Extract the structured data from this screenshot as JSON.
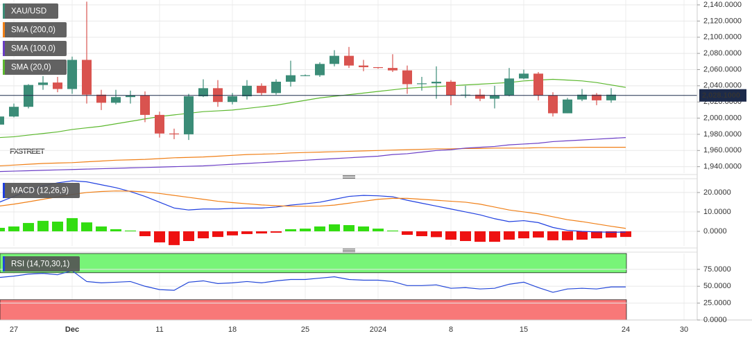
{
  "chart_data": [
    {
      "type": "candlestick",
      "watermark": "FXSTREET",
      "categories": [
        null,
        "27",
        null,
        null,
        null,
        "Dec",
        null,
        null,
        null,
        null,
        null,
        "11",
        null,
        null,
        null,
        null,
        "18",
        null,
        null,
        null,
        null,
        "25",
        null,
        null,
        null,
        null,
        "2024",
        null,
        null,
        null,
        null,
        "8",
        null,
        null,
        null,
        null,
        "15",
        null,
        null,
        null,
        null,
        null,
        null,
        "24",
        null,
        null,
        null,
        "30"
      ],
      "candles": {
        "name": "XAU/USD",
        "up_color": "#3b8c77",
        "down_color": "#d9534f",
        "open": [
          1992,
          2002,
          2014,
          2041,
          2044,
          2036,
          2072,
          2029,
          2019,
          2026,
          2028,
          2004,
          1981,
          1980,
          2027,
          2037,
          2020,
          2027,
          2040,
          2031,
          2045,
          2053,
          2053,
          2067,
          2077,
          2065,
          2063,
          2062,
          2059,
          2042,
          2043,
          2045,
          2028,
          2029,
          2024,
          2028,
          2049,
          2055,
          2028,
          2006,
          2023,
          2029,
          2022,
          null,
          null,
          null,
          null,
          null
        ],
        "high": [
          2004,
          2018,
          2042,
          2052,
          2051,
          2076,
          2144,
          2035,
          2035,
          2034,
          2033,
          2008,
          1987,
          2030,
          2048,
          2047,
          2031,
          2047,
          2043,
          2048,
          2071,
          2054,
          2069,
          2084,
          2088,
          2072,
          2063,
          2079,
          2065,
          2051,
          2064,
          2047,
          2040,
          2036,
          2040,
          2062,
          2060,
          2057,
          2032,
          2025,
          2036,
          2031,
          2037,
          null,
          null,
          null,
          null,
          null
        ],
        "low": [
          1990,
          2001,
          2012,
          2035,
          2032,
          2030,
          2018,
          2010,
          2017,
          2018,
          1995,
          1976,
          1974,
          1973,
          2026,
          2014,
          2017,
          2023,
          2028,
          2029,
          2039,
          2052,
          2051,
          2064,
          2062,
          2058,
          2061,
          2057,
          2030,
          2034,
          2024,
          2016,
          2025,
          2021,
          2012,
          2027,
          2048,
          2022,
          2002,
          2006,
          2021,
          2016,
          2019,
          null,
          null,
          null,
          null,
          null
        ],
        "close": [
          2002,
          2014,
          2041,
          2044,
          2036,
          2072,
          2029,
          2019,
          2026,
          2028,
          2004,
          1981,
          1980,
          2027,
          2037,
          2020,
          2027,
          2040,
          2031,
          2045,
          2053,
          2053,
          2067,
          2077,
          2065,
          2063,
          2062,
          2059,
          2042,
          2043,
          2045,
          2028,
          2029,
          2024,
          2028,
          2049,
          2055,
          2028,
          2006,
          2023,
          2029,
          2022,
          2029,
          null,
          null,
          null,
          null,
          null
        ]
      },
      "series": [
        {
          "name": "SMA (200,0)",
          "color": "#f07f16",
          "values": [
            1941,
            1942,
            1943,
            1944,
            1944.5,
            1945,
            1946,
            1947,
            1948,
            1948.5,
            1949,
            1950,
            1951,
            1951.5,
            1952,
            1953,
            1954,
            1955,
            1955.5,
            1956,
            1957,
            1957.5,
            1958,
            1958.5,
            1959,
            1959.5,
            1960,
            1960.5,
            1961,
            1961.5,
            1962,
            1962,
            1962.5,
            1962.5,
            1963,
            1963,
            1963,
            1963.5,
            1963.5,
            1963.5,
            1964,
            1964,
            1964,
            1964,
            null,
            null,
            null,
            null
          ]
        },
        {
          "name": "SMA (100,0)",
          "color": "#6a3dc6",
          "values": [
            1934,
            1934.5,
            1935,
            1935.5,
            1936,
            1936.5,
            1937,
            1937.5,
            1938,
            1938.5,
            1939,
            1939.5,
            1940,
            1940.5,
            1941,
            1942,
            1943,
            1944,
            1945,
            1946,
            1947,
            1948,
            1949,
            1950,
            1951,
            1952,
            1953,
            1955,
            1956,
            1958,
            1960,
            1961,
            1963,
            1964,
            1965,
            1967,
            1968,
            1969,
            1971,
            1972,
            1973,
            1974,
            1975,
            1976,
            null,
            null,
            null,
            null
          ]
        },
        {
          "name": "SMA (20,0)",
          "color": "#5cb82e",
          "values": [
            1976,
            1977,
            1979,
            1981,
            1983,
            1986,
            1988,
            1990,
            1993,
            1996,
            1999,
            2002,
            2004,
            2006,
            2008,
            2009,
            2010,
            2012,
            2014,
            2016,
            2019,
            2022,
            2025,
            2027,
            2029,
            2031,
            2033,
            2035,
            2037,
            2038,
            2039,
            2040,
            2041,
            2042,
            2043,
            2044,
            2046,
            2047,
            2048,
            2047,
            2046,
            2044,
            2041,
            2038,
            null,
            null,
            null,
            null
          ]
        }
      ],
      "last_price": {
        "value": 2028.1,
        "label": "2,028.1000",
        "color": "#1c2a4a"
      },
      "ylim": [
        1932,
        2146
      ],
      "yticks": [
        {
          "value": 2140,
          "label": "2,140.0000"
        },
        {
          "value": 2120,
          "label": "2,120.0000"
        },
        {
          "value": 2100,
          "label": "2,100.0000"
        },
        {
          "value": 2080,
          "label": "2,080.0000"
        },
        {
          "value": 2060,
          "label": "2,060.0000"
        },
        {
          "value": 2040,
          "label": "2,040.0000"
        },
        {
          "value": 2020,
          "label": "2,020.0000"
        },
        {
          "value": 2000,
          "label": "2,000.0000"
        },
        {
          "value": 1980,
          "label": "1,980.0000"
        },
        {
          "value": 1960,
          "label": "1,960.0000"
        },
        {
          "value": 1940,
          "label": "1,940.0000"
        }
      ],
      "grid": true
    },
    {
      "type": "macd",
      "label": "MACD (12,26,9)",
      "histogram": {
        "up_color": "#33dd11",
        "down_color": "#ee1111",
        "values": [
          1.8,
          2.5,
          4.3,
          5.4,
          5,
          6.8,
          4.6,
          2.5,
          1.1,
          0.4,
          -2.5,
          -5.7,
          -7.1,
          -5,
          -3.6,
          -2.9,
          -2.1,
          -1.4,
          -1.1,
          -0.7,
          1.1,
          1.4,
          2.5,
          3.6,
          3.2,
          2.5,
          1.4,
          0.4,
          -1.8,
          -2.5,
          -3,
          -4.3,
          -5,
          -5.4,
          -5.4,
          -4.3,
          -3.6,
          -3.2,
          -4.6,
          -4.6,
          -4.3,
          -3.6,
          -3.2,
          -2.9,
          null,
          null,
          null,
          null
        ]
      },
      "series": [
        {
          "color": "#1f3fe0",
          "values": [
            15,
            18,
            21,
            23.5,
            25,
            26,
            25.5,
            24,
            22.5,
            20.5,
            18,
            15,
            12,
            11,
            11.5,
            11.5,
            11.8,
            12,
            12,
            12.5,
            13.5,
            14.2,
            15,
            16.5,
            18,
            18.5,
            18.3,
            17.8,
            16,
            14.5,
            13,
            11.5,
            10,
            8.5,
            6.5,
            5,
            5.5,
            4.5,
            2,
            0.5,
            0,
            -0.3,
            -0.5,
            -0.4,
            null,
            null,
            null,
            null
          ]
        },
        {
          "color": "#f07f16",
          "values": [
            13,
            14,
            15.2,
            16.5,
            17.8,
            19,
            20,
            20.5,
            20.8,
            20.7,
            20.3,
            19.5,
            18.5,
            17.5,
            16.5,
            15.5,
            14.8,
            14.2,
            13.6,
            13.2,
            12.9,
            12.9,
            13,
            13.5,
            14.5,
            15.5,
            16.5,
            17,
            17,
            16.5,
            16,
            15.5,
            15,
            14,
            12.5,
            11,
            10,
            9,
            7.5,
            6,
            5,
            3.8,
            2.6,
            1.5,
            null,
            null,
            null,
            null
          ]
        }
      ],
      "ylim": [
        -7.5,
        26.4
      ],
      "yticks": [
        {
          "value": 20,
          "label": "20.0000"
        },
        {
          "value": 10,
          "label": "10.0000"
        },
        {
          "value": 0,
          "label": "0.0000"
        }
      ],
      "grid": true
    },
    {
      "type": "rsi",
      "label": "RSI (14,70,30,1)",
      "bands": [
        {
          "from": 70,
          "to": 98.5,
          "color": "#78f478"
        },
        {
          "from": 0,
          "to": 30,
          "color": "#f87878"
        }
      ],
      "series": [
        {
          "color": "#2246d8",
          "values": [
            63,
            65,
            68,
            69,
            67,
            73,
            57,
            55,
            56,
            57,
            50,
            45,
            44,
            56,
            58,
            54,
            55,
            57,
            55,
            58,
            60,
            60,
            62,
            64,
            60,
            59,
            59,
            57,
            51,
            51,
            52,
            47,
            48,
            46,
            47,
            53,
            56,
            48,
            41,
            46,
            47,
            46,
            49,
            49,
            null,
            null,
            null,
            null
          ]
        }
      ],
      "ylim": [
        0,
        98.5
      ],
      "yticks": [
        {
          "value": 75,
          "label": "75.0000"
        },
        {
          "value": 50,
          "label": "50.0000"
        },
        {
          "value": 25,
          "label": "25.0000"
        },
        {
          "value": 0,
          "label": "0.0000"
        }
      ],
      "grid": true
    }
  ]
}
